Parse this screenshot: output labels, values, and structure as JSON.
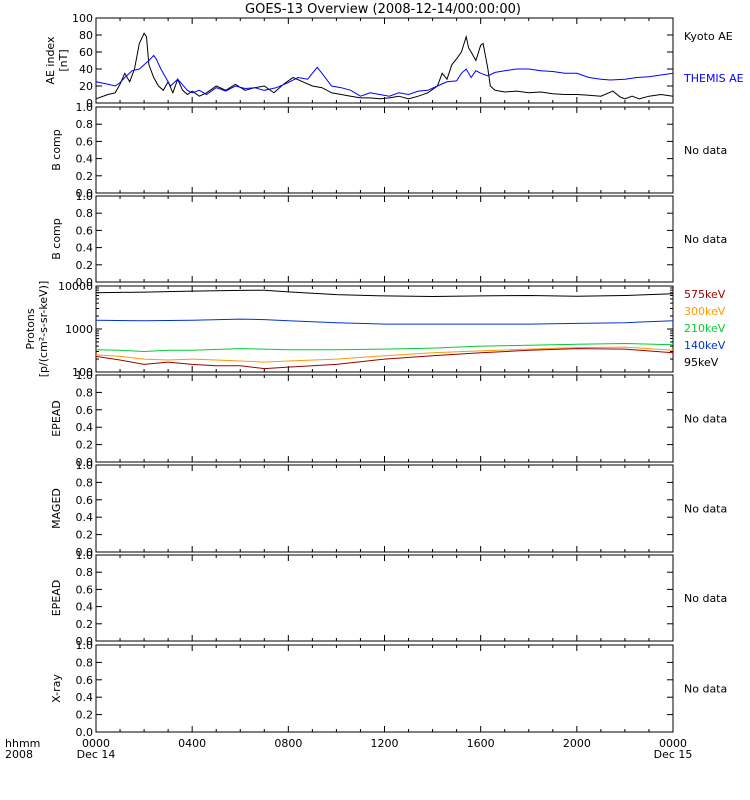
{
  "title": "GOES-13 Overview (2008-12-14/00:00:00)",
  "x_axis": {
    "row_labels": [
      "hhmm",
      "2008"
    ],
    "ticks": [
      "0000",
      "0400",
      "0800",
      "1200",
      "1600",
      "2000",
      "0000"
    ],
    "tick_dates": [
      "Dec 14",
      "",
      "",
      "",
      "",
      "",
      "Dec 15"
    ]
  },
  "chart_data": [
    {
      "type": "line",
      "id": "ae",
      "ylabel": "AE index\n[nT]",
      "ylim": [
        0,
        100
      ],
      "yticks": [
        "0",
        "20",
        "40",
        "60",
        "80",
        "100"
      ],
      "x_unit": "hours since 2008-12-14 00:00",
      "series": [
        {
          "name": "Kyoto AE",
          "color": "#000000",
          "x": [
            0,
            0.5,
            0.8,
            1.0,
            1.2,
            1.4,
            1.6,
            1.8,
            2.0,
            2.1,
            2.2,
            2.4,
            2.6,
            2.8,
            3.0,
            3.2,
            3.4,
            3.6,
            3.8,
            4.0,
            4.3,
            4.6,
            5.0,
            5.4,
            5.8,
            6.2,
            6.6,
            7.0,
            7.4,
            7.8,
            8.2,
            8.6,
            9.0,
            9.4,
            9.8,
            10.2,
            10.6,
            11.0,
            11.4,
            11.8,
            12.2,
            12.6,
            13.0,
            13.4,
            13.8,
            14.2,
            14.4,
            14.6,
            14.8,
            15.0,
            15.2,
            15.4,
            15.5,
            15.6,
            15.8,
            16.0,
            16.1,
            16.2,
            16.3,
            16.4,
            16.6,
            17.0,
            17.5,
            18.0,
            18.5,
            19.0,
            19.5,
            20.0,
            20.5,
            21.0,
            21.5,
            21.8,
            22.0,
            22.3,
            22.6,
            23.0,
            23.5,
            24.0
          ],
          "y": [
            5,
            10,
            12,
            22,
            35,
            25,
            40,
            70,
            82,
            78,
            45,
            30,
            20,
            15,
            25,
            12,
            28,
            15,
            10,
            14,
            8,
            12,
            20,
            15,
            22,
            15,
            18,
            20,
            12,
            22,
            30,
            25,
            20,
            18,
            12,
            10,
            8,
            6,
            6,
            5,
            6,
            8,
            5,
            8,
            12,
            20,
            35,
            28,
            45,
            52,
            60,
            78,
            65,
            60,
            50,
            68,
            70,
            55,
            40,
            20,
            15,
            13,
            14,
            12,
            13,
            11,
            10,
            10,
            9,
            8,
            14,
            7,
            5,
            8,
            5,
            8,
            10,
            8
          ]
        },
        {
          "name": "THEMIS AE",
          "color": "#0000ff",
          "x": [
            0,
            0.5,
            0.8,
            1.0,
            1.2,
            1.5,
            1.8,
            2.0,
            2.2,
            2.4,
            2.5,
            2.7,
            2.9,
            3.1,
            3.4,
            3.8,
            4.0,
            4.3,
            4.6,
            5.0,
            5.4,
            5.8,
            6.2,
            6.6,
            7.0,
            7.5,
            8.0,
            8.4,
            8.8,
            9.2,
            9.4,
            9.8,
            10.2,
            10.6,
            11.0,
            11.4,
            11.8,
            12.2,
            12.6,
            13.0,
            13.4,
            13.8,
            14.2,
            14.6,
            15.0,
            15.2,
            15.4,
            15.6,
            15.8,
            16.0,
            16.3,
            16.6,
            17.0,
            17.5,
            18.0,
            18.5,
            19.0,
            19.5,
            20.0,
            20.5,
            21.0,
            21.4,
            22.0,
            22.5,
            23.0,
            23.5,
            24.0
          ],
          "y": [
            25,
            22,
            20,
            24,
            30,
            38,
            40,
            45,
            50,
            56,
            52,
            40,
            30,
            20,
            28,
            15,
            12,
            15,
            10,
            18,
            14,
            20,
            17,
            18,
            15,
            18,
            24,
            30,
            28,
            42,
            35,
            20,
            18,
            15,
            8,
            12,
            10,
            8,
            12,
            10,
            14,
            15,
            20,
            25,
            26,
            35,
            40,
            30,
            38,
            35,
            32,
            36,
            38,
            40,
            40,
            38,
            37,
            35,
            35,
            30,
            28,
            27,
            28,
            30,
            31,
            33,
            35
          ]
        }
      ]
    },
    {
      "type": "line",
      "id": "bcomp1",
      "ylabel": "B comp",
      "ylim": [
        0,
        1
      ],
      "yticks": [
        "0.0",
        "0.2",
        "0.4",
        "0.6",
        "0.8",
        "1.0"
      ],
      "series": [],
      "annotation": "No data"
    },
    {
      "type": "line",
      "id": "bcomp2",
      "ylabel": "B comp",
      "ylim": [
        0,
        1
      ],
      "yticks": [
        "0.0",
        "0.2",
        "0.4",
        "0.6",
        "0.8",
        "1.0"
      ],
      "series": [],
      "annotation": "No data"
    },
    {
      "type": "line",
      "id": "protons",
      "ylabel": "Protons\n[p/(cm²-s-sr-keV)]",
      "yscale": "log",
      "ylim": [
        100,
        10000
      ],
      "yticks": [
        "100",
        "1000",
        "10000"
      ],
      "x_unit": "hours since 2008-12-14 00:00",
      "series": [
        {
          "name": "95keV",
          "color": "#000000",
          "x": [
            0,
            2,
            4,
            6,
            7,
            8,
            10,
            12,
            14,
            16,
            18,
            20,
            22,
            24
          ],
          "y": [
            7000,
            7200,
            7600,
            7900,
            8000,
            7300,
            6300,
            5900,
            5700,
            5900,
            6000,
            5800,
            6000,
            6600
          ]
        },
        {
          "name": "140keV",
          "color": "#0033cc",
          "x": [
            0,
            2,
            4,
            6,
            7,
            8,
            10,
            12,
            14,
            16,
            18,
            20,
            22,
            24
          ],
          "y": [
            1600,
            1550,
            1600,
            1700,
            1650,
            1550,
            1400,
            1300,
            1300,
            1300,
            1300,
            1350,
            1400,
            1550
          ]
        },
        {
          "name": "210keV",
          "color": "#00cc33",
          "x": [
            0,
            1,
            2,
            3,
            4,
            6,
            8,
            10,
            12,
            14,
            16,
            18,
            20,
            22,
            24
          ],
          "y": [
            330,
            320,
            300,
            320,
            320,
            350,
            330,
            330,
            340,
            360,
            400,
            420,
            440,
            460,
            430
          ]
        },
        {
          "name": "300keV",
          "color": "#ff9900",
          "x": [
            0,
            1,
            2,
            3,
            4,
            5,
            6,
            7,
            8,
            10,
            12,
            14,
            16,
            18,
            20,
            22,
            24
          ],
          "y": [
            250,
            230,
            200,
            190,
            200,
            190,
            180,
            170,
            180,
            200,
            240,
            280,
            310,
            340,
            370,
            380,
            320
          ]
        },
        {
          "name": "575keV",
          "color": "#990000",
          "x": [
            0,
            1,
            2,
            3,
            4,
            5,
            6,
            7,
            8,
            10,
            12,
            14,
            16,
            18,
            20,
            22,
            24
          ],
          "y": [
            230,
            190,
            150,
            170,
            150,
            140,
            140,
            120,
            130,
            150,
            200,
            240,
            280,
            320,
            350,
            340,
            280
          ]
        }
      ]
    },
    {
      "type": "line",
      "id": "epead1",
      "ylabel": "EPEAD",
      "ylim": [
        0,
        1
      ],
      "yticks": [
        "0.0",
        "0.2",
        "0.4",
        "0.6",
        "0.8",
        "1.0"
      ],
      "series": [],
      "annotation": "No data"
    },
    {
      "type": "line",
      "id": "maged",
      "ylabel": "MAGED",
      "ylim": [
        0,
        1
      ],
      "yticks": [
        "0.0",
        "0.2",
        "0.4",
        "0.6",
        "0.8",
        "1.0"
      ],
      "series": [],
      "annotation": "No data"
    },
    {
      "type": "line",
      "id": "epead2",
      "ylabel": "EPEAD",
      "ylim": [
        0,
        1
      ],
      "yticks": [
        "0.0",
        "0.2",
        "0.4",
        "0.6",
        "0.8",
        "1.0"
      ],
      "series": [],
      "annotation": "No data"
    },
    {
      "type": "line",
      "id": "xray",
      "ylabel": "X-ray",
      "ylim": [
        0,
        1
      ],
      "yticks": [
        "0.0",
        "0.2",
        "0.4",
        "0.6",
        "0.8",
        "1.0"
      ],
      "series": [],
      "annotation": "No data"
    }
  ]
}
